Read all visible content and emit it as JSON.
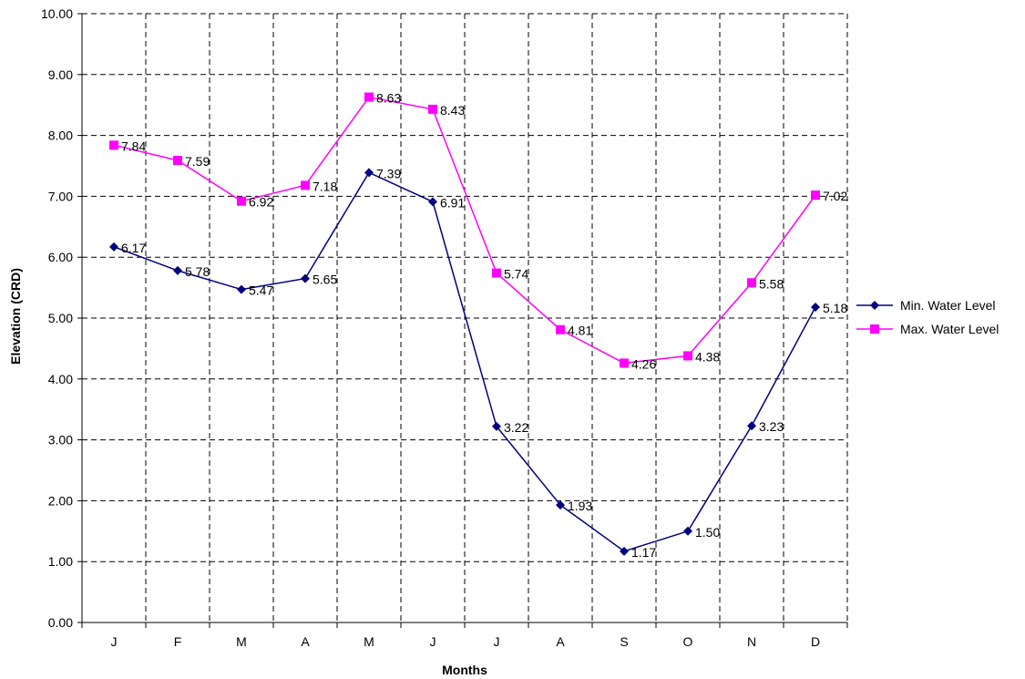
{
  "chart_data": {
    "type": "line",
    "xlabel": "Months",
    "ylabel": "Elevation (CRD)",
    "categories": [
      "J",
      "F",
      "M",
      "A",
      "M",
      "J",
      "J",
      "A",
      "S",
      "O",
      "N",
      "D"
    ],
    "ylim": [
      0,
      10
    ],
    "ytick_step": 1,
    "ytick_labels": [
      "0.00",
      "1.00",
      "2.00",
      "3.00",
      "4.00",
      "5.00",
      "6.00",
      "7.00",
      "8.00",
      "9.00",
      "10.00"
    ],
    "grid": true,
    "grid_style": "dashed",
    "legend_position": "right",
    "series": [
      {
        "name": "Min. Water Level",
        "color": "#000080",
        "marker": "diamond",
        "values": [
          6.17,
          5.78,
          5.47,
          5.65,
          7.39,
          6.91,
          3.22,
          1.93,
          1.17,
          1.5,
          3.23,
          5.18
        ],
        "labels": [
          "6.17",
          "5.78",
          "5.47",
          "5.65",
          "7.39",
          "6.91",
          "3.22",
          "1.93",
          "1.17",
          "1.50",
          "3.23",
          "5.18"
        ]
      },
      {
        "name": "Max. Water Level",
        "color": "#ff00ff",
        "marker": "square",
        "values": [
          7.84,
          7.59,
          6.92,
          7.18,
          8.63,
          8.43,
          5.74,
          4.81,
          4.26,
          4.38,
          5.58,
          7.02
        ],
        "labels": [
          "7.84",
          "7.59",
          "6.92",
          "7.18",
          "8.63",
          "8.43",
          "5.74",
          "4.81",
          "4.26",
          "4.38",
          "5.58",
          "7.02"
        ]
      }
    ]
  }
}
